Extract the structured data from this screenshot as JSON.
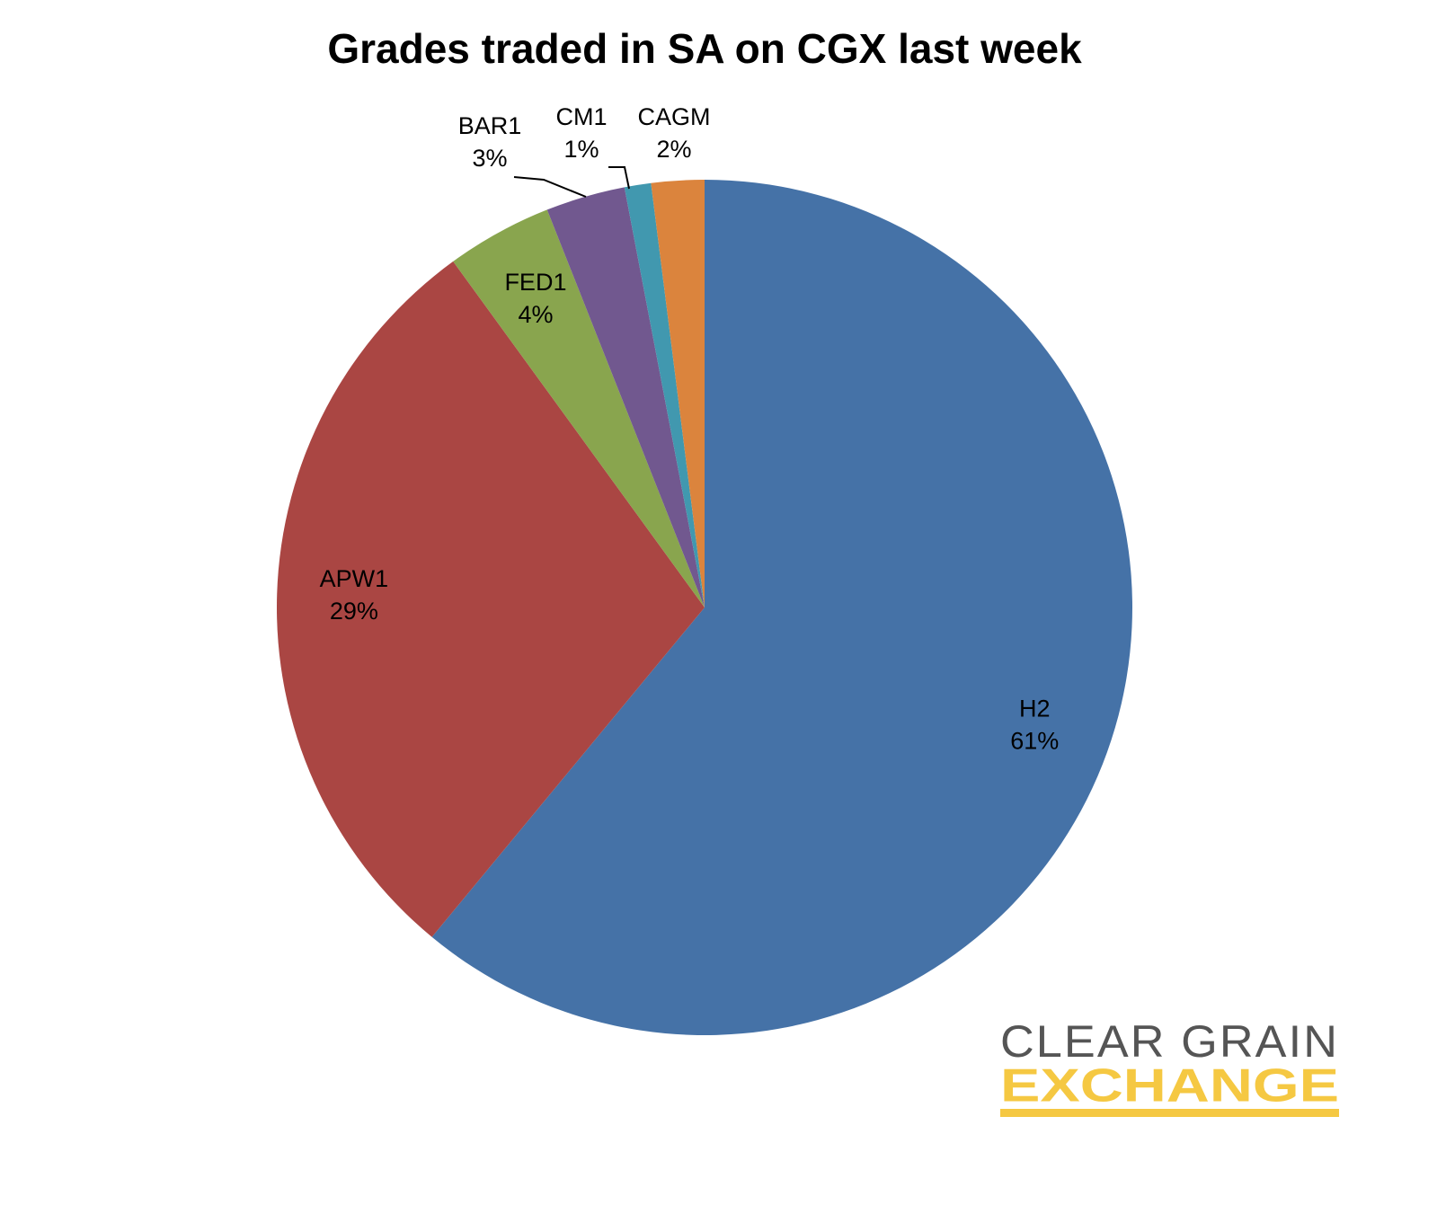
{
  "chart_data": {
    "type": "pie",
    "title": "Grades traded in SA on CGX last week",
    "categories": [
      "H2",
      "APW1",
      "FED1",
      "BAR1",
      "CM1",
      "CAGM"
    ],
    "values": [
      61,
      29,
      4,
      3,
      1,
      2
    ],
    "value_labels": [
      "61%",
      "29%",
      "4%",
      "3%",
      "1%",
      "2%"
    ],
    "colors": [
      "#4572a7",
      "#aa4643",
      "#89a54e",
      "#71588f",
      "#4198af",
      "#db843d"
    ]
  },
  "logo": {
    "line1": "CLEAR GRAIN",
    "line2": "EXCHANGE"
  }
}
